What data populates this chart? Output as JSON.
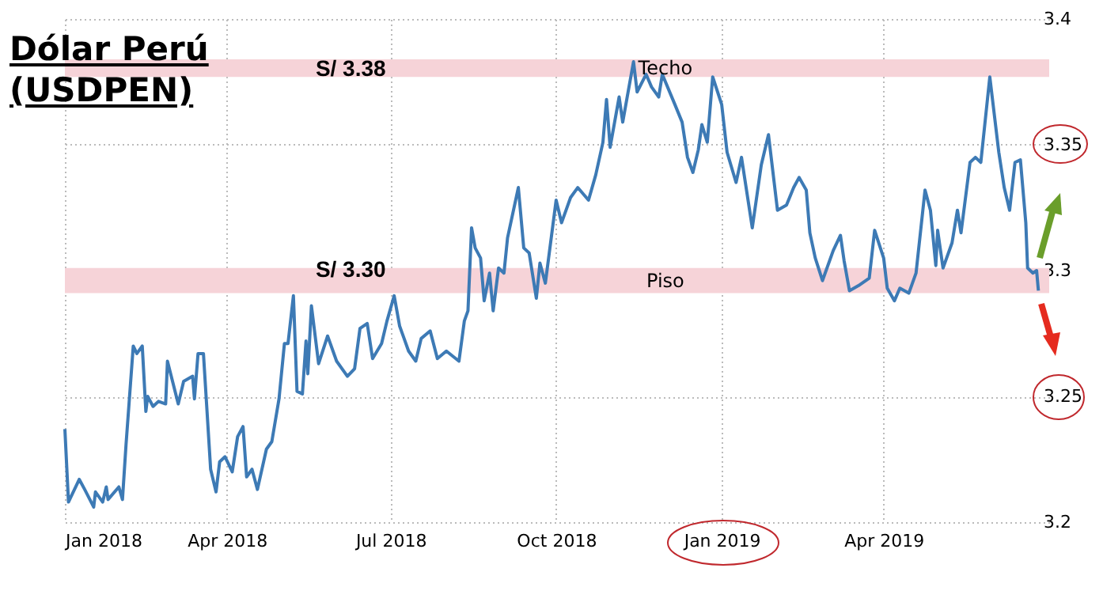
{
  "chart_data": {
    "type": "line",
    "title": "Dólar Perú (USDPEN)",
    "x": [
      "2018-01-01",
      "2018-01-03",
      "2018-01-09",
      "2018-01-12",
      "2018-01-17",
      "2018-01-18",
      "2018-01-22",
      "2018-01-24",
      "2018-01-25",
      "2018-01-31",
      "2018-02-02",
      "2018-02-04",
      "2018-02-08",
      "2018-02-10",
      "2018-02-13",
      "2018-02-15",
      "2018-02-16",
      "2018-02-19",
      "2018-02-22",
      "2018-02-26",
      "2018-02-27",
      "2018-03-05",
      "2018-03-08",
      "2018-03-13",
      "2018-03-14",
      "2018-03-16",
      "2018-03-19",
      "2018-03-23",
      "2018-03-26",
      "2018-03-28",
      "2018-03-31",
      "2018-04-04",
      "2018-04-07",
      "2018-04-10",
      "2018-04-12",
      "2018-04-15",
      "2018-04-18",
      "2018-04-23",
      "2018-04-26",
      "2018-04-30",
      "2018-05-03",
      "2018-05-05",
      "2018-05-08",
      "2018-05-10",
      "2018-05-13",
      "2018-05-15",
      "2018-05-16",
      "2018-05-18",
      "2018-05-22",
      "2018-05-27",
      "2018-06-01",
      "2018-06-07",
      "2018-06-11",
      "2018-06-14",
      "2018-06-18",
      "2018-06-21",
      "2018-06-26",
      "2018-06-29",
      "2018-07-03",
      "2018-07-06",
      "2018-07-11",
      "2018-07-15",
      "2018-07-18",
      "2018-07-23",
      "2018-07-27",
      "2018-08-01",
      "2018-08-08",
      "2018-08-11",
      "2018-08-13",
      "2018-08-15",
      "2018-08-17",
      "2018-08-20",
      "2018-08-22",
      "2018-08-25",
      "2018-08-27",
      "2018-08-30",
      "2018-09-02",
      "2018-09-04",
      "2018-09-10",
      "2018-09-13",
      "2018-09-16",
      "2018-09-20",
      "2018-09-22",
      "2018-09-25",
      "2018-10-01",
      "2018-10-04",
      "2018-10-09",
      "2018-10-13",
      "2018-10-19",
      "2018-10-23",
      "2018-10-27",
      "2018-10-29",
      "2018-10-31",
      "2018-11-05",
      "2018-11-07",
      "2018-11-10",
      "2018-11-13",
      "2018-11-15",
      "2018-11-20",
      "2018-11-23",
      "2018-11-27",
      "2018-11-29",
      "2018-12-06",
      "2018-12-10",
      "2018-12-13",
      "2018-12-16",
      "2018-12-19",
      "2018-12-21",
      "2018-12-24",
      "2018-12-27",
      "2019-01-01",
      "2019-01-04",
      "2019-01-09",
      "2019-01-12",
      "2019-01-18",
      "2019-01-23",
      "2019-01-27",
      "2019-02-01",
      "2019-02-06",
      "2019-02-10",
      "2019-02-13",
      "2019-02-17",
      "2019-02-19",
      "2019-02-22",
      "2019-02-26",
      "2019-03-04",
      "2019-03-08",
      "2019-03-10",
      "2019-03-13",
      "2019-03-18",
      "2019-03-24",
      "2019-03-27",
      "2019-04-01",
      "2019-04-03",
      "2019-04-07",
      "2019-04-10",
      "2019-04-15",
      "2019-04-19",
      "2019-04-24",
      "2019-04-27",
      "2019-04-30",
      "2019-05-01",
      "2019-05-04",
      "2019-05-09",
      "2019-05-12",
      "2019-05-14",
      "2019-05-19",
      "2019-05-22",
      "2019-05-25",
      "2019-05-30",
      "2019-06-04",
      "2019-06-07",
      "2019-06-10",
      "2019-06-13",
      "2019-06-16",
      "2019-06-19",
      "2019-06-20",
      "2019-06-23",
      "2019-06-25",
      "2019-06-26"
    ],
    "series": [
      {
        "color": "#3d7ab5",
        "values": [
          3.237,
          3.208,
          3.217,
          3.213,
          3.206,
          3.212,
          3.208,
          3.214,
          3.209,
          3.214,
          3.209,
          3.231,
          3.27,
          3.267,
          3.27,
          3.244,
          3.25,
          3.246,
          3.248,
          3.247,
          3.264,
          3.247,
          3.256,
          3.258,
          3.249,
          3.267,
          3.267,
          3.221,
          3.212,
          3.224,
          3.226,
          3.22,
          3.234,
          3.238,
          3.218,
          3.221,
          3.213,
          3.229,
          3.232,
          3.249,
          3.271,
          3.271,
          3.29,
          3.252,
          3.251,
          3.272,
          3.259,
          3.286,
          3.263,
          3.274,
          3.264,
          3.258,
          3.261,
          3.277,
          3.279,
          3.265,
          3.271,
          3.28,
          3.29,
          3.278,
          3.268,
          3.264,
          3.273,
          3.276,
          3.265,
          3.268,
          3.264,
          3.28,
          3.284,
          3.317,
          3.309,
          3.305,
          3.288,
          3.299,
          3.284,
          3.301,
          3.299,
          3.313,
          3.333,
          3.309,
          3.307,
          3.289,
          3.303,
          3.295,
          3.328,
          3.319,
          3.329,
          3.333,
          3.328,
          3.338,
          3.351,
          3.368,
          3.349,
          3.369,
          3.359,
          3.371,
          3.383,
          3.371,
          3.378,
          3.373,
          3.369,
          3.378,
          3.366,
          3.359,
          3.345,
          3.339,
          3.348,
          3.358,
          3.351,
          3.377,
          3.366,
          3.347,
          3.335,
          3.345,
          3.317,
          3.342,
          3.354,
          3.324,
          3.326,
          3.333,
          3.337,
          3.332,
          3.315,
          3.305,
          3.296,
          3.308,
          3.314,
          3.304,
          3.292,
          3.294,
          3.297,
          3.316,
          3.305,
          3.293,
          3.288,
          3.293,
          3.291,
          3.299,
          3.332,
          3.324,
          3.302,
          3.316,
          3.301,
          3.311,
          3.324,
          3.315,
          3.343,
          3.345,
          3.343,
          3.377,
          3.347,
          3.333,
          3.324,
          3.343,
          3.344,
          3.319,
          3.301,
          3.299,
          3.3,
          3.292
        ]
      }
    ],
    "xlim": [
      "2018-01-01",
      "2019-07-02"
    ],
    "ylim": [
      3.2,
      3.4
    ],
    "xticks": [
      {
        "value": "2018-01-01",
        "label": "Jan 2018"
      },
      {
        "value": "2018-04-01",
        "label": "Apr 2018"
      },
      {
        "value": "2018-07-01",
        "label": "Jul 2018"
      },
      {
        "value": "2018-10-01",
        "label": "Oct 2018"
      },
      {
        "value": "2019-01-01",
        "label": "Jan 2019"
      },
      {
        "value": "2019-04-01",
        "label": "Apr 2019"
      }
    ],
    "yticks": [
      3.2,
      3.25,
      3.3,
      3.35,
      3.4
    ],
    "grid": true,
    "bands": [
      {
        "axis": "y",
        "from": 3.377,
        "to": 3.384,
        "label": "Techo",
        "color": "#f6d3d8"
      },
      {
        "axis": "y",
        "from": 3.291,
        "to": 3.301,
        "label": "Piso",
        "color": "#f6d3d8"
      }
    ],
    "annotations": [
      {
        "text": "S/ 3.38",
        "x": "2018-07-01",
        "y": 3.38
      },
      {
        "text": "S/ 3.30",
        "x": "2018-07-01",
        "y": 3.3
      }
    ]
  }
}
